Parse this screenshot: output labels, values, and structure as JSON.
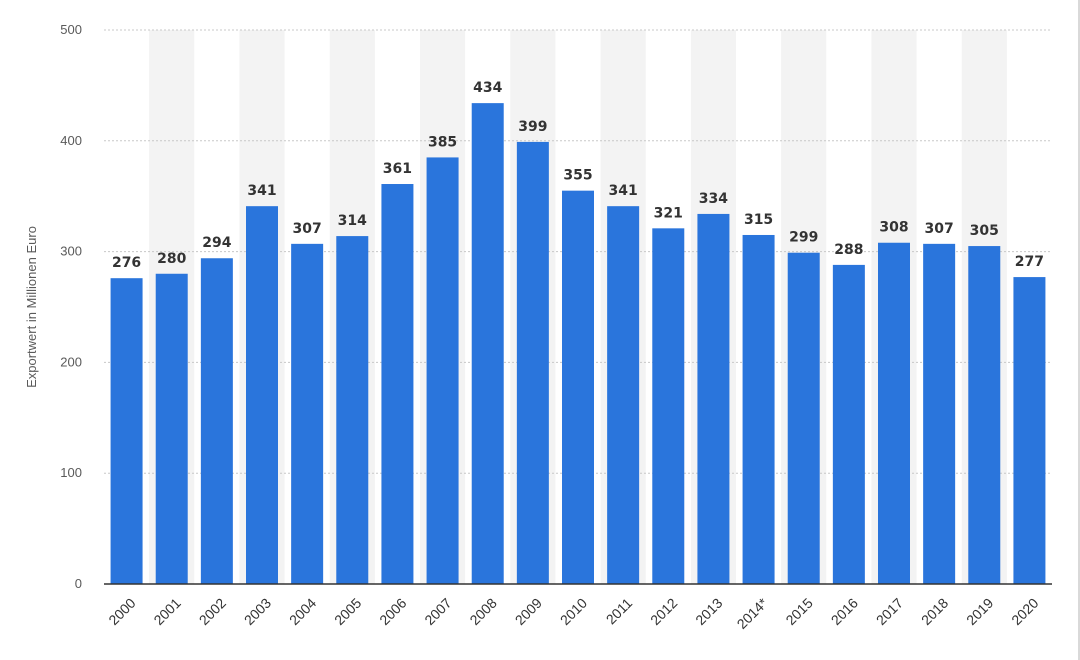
{
  "chart_data": {
    "type": "bar",
    "title": "",
    "xlabel": "",
    "ylabel": "Exportwert in Millionen Euro",
    "ylim": [
      0,
      500
    ],
    "yticks": [
      0,
      100,
      200,
      300,
      400,
      500
    ],
    "grid": true,
    "categories": [
      "2000",
      "2001",
      "2002",
      "2003",
      "2004",
      "2005",
      "2006",
      "2007",
      "2008",
      "2009",
      "2010",
      "2011",
      "2012",
      "2013",
      "2014*",
      "2015",
      "2016",
      "2017",
      "2018",
      "2019",
      "2020"
    ],
    "values": [
      276,
      280,
      294,
      341,
      307,
      314,
      361,
      385,
      434,
      399,
      355,
      341,
      321,
      334,
      315,
      299,
      288,
      308,
      307,
      305,
      277
    ],
    "bar_color": "#2a75dc",
    "stripe_color": "#f3f3f3",
    "grid_color": "#c8c8c8",
    "axis_color": "#333333"
  }
}
